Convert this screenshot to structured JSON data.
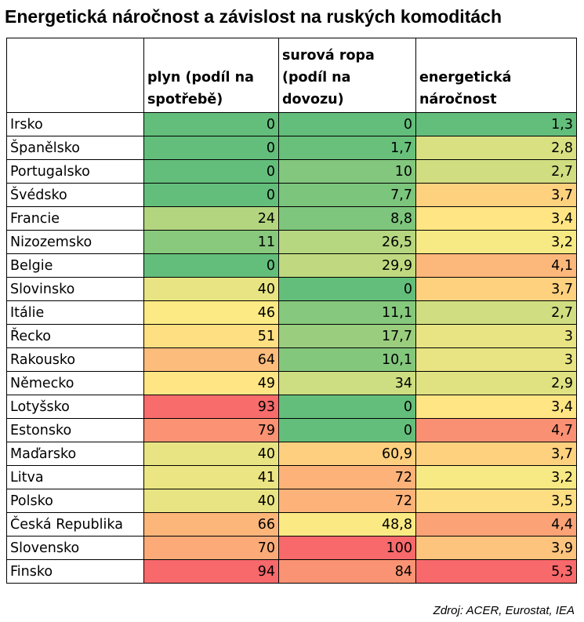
{
  "colors": {
    "low": "#63be7b",
    "mid": "#ffeb84",
    "high": "#f8696b"
  },
  "chart_data": {
    "type": "table",
    "title": "Energetická náročnost a závislost na ruských komoditách",
    "columns": [
      "",
      "plyn (podíl na spotřebě)",
      "surová ropa (podíl na dovozu)",
      "energetická náročnost"
    ],
    "rows": [
      {
        "country": "Irsko",
        "values": [
          "0",
          "0",
          "1,3"
        ]
      },
      {
        "country": "Španělsko",
        "values": [
          "0",
          "1,7",
          "2,8"
        ]
      },
      {
        "country": "Portugalsko",
        "values": [
          "0",
          "10",
          "2,7"
        ]
      },
      {
        "country": "Švédsko",
        "values": [
          "0",
          "7,7",
          "3,7"
        ]
      },
      {
        "country": "Francie",
        "values": [
          "24",
          "8,8",
          "3,4"
        ]
      },
      {
        "country": "Nizozemsko",
        "values": [
          "11",
          "26,5",
          "3,2"
        ]
      },
      {
        "country": "Belgie",
        "values": [
          "0",
          "29,9",
          "4,1"
        ]
      },
      {
        "country": "Slovinsko",
        "values": [
          "40",
          "0",
          "3,7"
        ]
      },
      {
        "country": "Itálie",
        "values": [
          "46",
          "11,1",
          "2,7"
        ]
      },
      {
        "country": "Řecko",
        "values": [
          "51",
          "17,7",
          "3"
        ]
      },
      {
        "country": "Rakousko",
        "values": [
          "64",
          "10,1",
          "3"
        ]
      },
      {
        "country": "Německo",
        "values": [
          "49",
          "34",
          "2,9"
        ]
      },
      {
        "country": "Lotyšsko",
        "values": [
          "93",
          "0",
          "3,4"
        ]
      },
      {
        "country": "Estonsko",
        "values": [
          "79",
          "0",
          "4,7"
        ]
      },
      {
        "country": "Maďarsko",
        "values": [
          "40",
          "60,9",
          "3,7"
        ]
      },
      {
        "country": "Litva",
        "values": [
          "41",
          "72",
          "3,2"
        ]
      },
      {
        "country": "Polsko",
        "values": [
          "40",
          "72",
          "3,5"
        ]
      },
      {
        "country": "Česká Republika",
        "values": [
          "66",
          "48,8",
          "4,4"
        ]
      },
      {
        "country": "Slovensko",
        "values": [
          "70",
          "100",
          "3,9"
        ]
      },
      {
        "country": "Finsko",
        "values": [
          "94",
          "84",
          "5,3"
        ]
      }
    ],
    "source": "Zdroj: ACER, Eurostat, IEA"
  }
}
